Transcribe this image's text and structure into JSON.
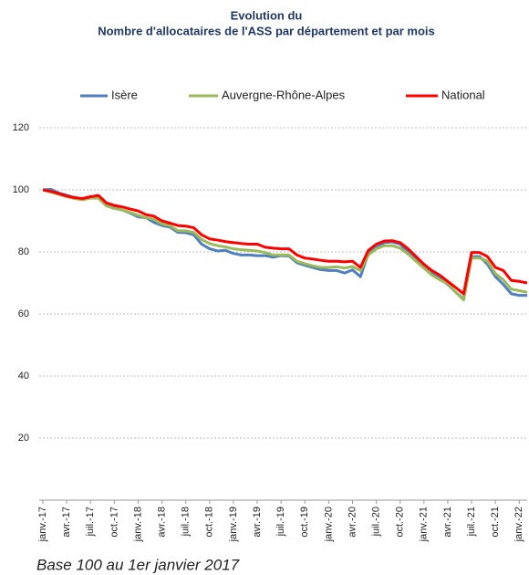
{
  "chart_data": {
    "type": "line",
    "title": "Evolution du",
    "subtitle": "Nombre d'allocataires de l'ASS par département et par mois",
    "note": "Base 100 au 1er janvier 2017",
    "categories": [
      "janv.-17",
      null,
      null,
      "avr.-17",
      null,
      null,
      "juil.-17",
      null,
      null,
      "oct.-17",
      null,
      null,
      "janv.-18",
      null,
      null,
      "avr.-18",
      null,
      null,
      "juil.-18",
      null,
      null,
      "oct.-18",
      null,
      null,
      "janv.-19",
      null,
      null,
      "avr.-19",
      null,
      null,
      "juil.-19",
      null,
      null,
      "oct.-19",
      null,
      null,
      "janv.-20",
      null,
      null,
      "avr.-20",
      null,
      null,
      "juil.-20",
      null,
      null,
      "oct.-20",
      null,
      null,
      "janv.-21",
      null,
      null,
      "avr.-21",
      null,
      null,
      "juil.-21",
      null,
      null,
      "oct.-21",
      null,
      null,
      "janv.-22",
      null
    ],
    "series": [
      {
        "name": "Isère",
        "color": "#4f7fbf",
        "values": [
          100,
          100.2,
          99,
          98.3,
          97.5,
          97,
          97.5,
          98,
          95.2,
          94.3,
          93.5,
          92.5,
          91.3,
          91,
          89.5,
          88.5,
          88,
          86.3,
          86.2,
          85.5,
          82.5,
          81,
          80.3,
          80.5,
          79.5,
          79,
          79,
          78.8,
          78.8,
          78.3,
          78.8,
          78.7,
          76.5,
          75.7,
          75,
          74.3,
          74,
          74,
          73.2,
          74.2,
          72,
          79.5,
          81.5,
          83,
          83.2,
          82.5,
          80,
          77.5,
          75,
          73,
          71.5,
          69.5,
          67,
          64.8,
          78.5,
          78.5,
          76,
          72,
          69.5,
          66.5,
          66,
          66
        ]
      },
      {
        "name": "Auvergne-Rhône-Alpes",
        "color": "#9bbb59",
        "values": [
          100,
          99.3,
          98.5,
          97.8,
          97.2,
          96.8,
          97.3,
          97.3,
          94.8,
          94,
          93.5,
          92.7,
          91.8,
          91,
          90.5,
          89,
          88.5,
          86.8,
          86.8,
          86.3,
          84,
          82.7,
          82,
          81.6,
          81,
          80.7,
          80.5,
          80.3,
          79.8,
          79,
          79,
          79,
          77,
          76.2,
          75.5,
          75,
          75,
          75.2,
          74.8,
          75.3,
          74,
          79,
          81,
          82,
          82,
          81.2,
          79.3,
          77,
          74.8,
          72.5,
          71,
          69.8,
          67,
          64.5,
          78,
          78,
          77,
          73,
          71,
          68,
          67.5,
          67
        ]
      },
      {
        "name": "National",
        "color": "#ff0000",
        "values": [
          100,
          99.5,
          98.8,
          98,
          97.5,
          97.2,
          97.8,
          98.2,
          95.8,
          95,
          94.5,
          93.8,
          93.2,
          92,
          91.5,
          90,
          89.3,
          88.5,
          88.3,
          87.8,
          85.5,
          84.2,
          83.8,
          83.3,
          83,
          82.7,
          82.5,
          82.5,
          81.5,
          81.2,
          81,
          81,
          79,
          78,
          77.7,
          77.3,
          77,
          77,
          76.8,
          77,
          75,
          80.5,
          82.5,
          83.5,
          83.6,
          83,
          81,
          78.5,
          76,
          74,
          72.5,
          70.5,
          68.5,
          66.5,
          79.8,
          79.8,
          78.5,
          75,
          74,
          70.8,
          70.5,
          70
        ]
      }
    ],
    "ylim": [
      0,
      120
    ],
    "yticks": [
      20,
      40,
      60,
      80,
      100,
      120
    ],
    "grid": true,
    "legend": "top"
  }
}
